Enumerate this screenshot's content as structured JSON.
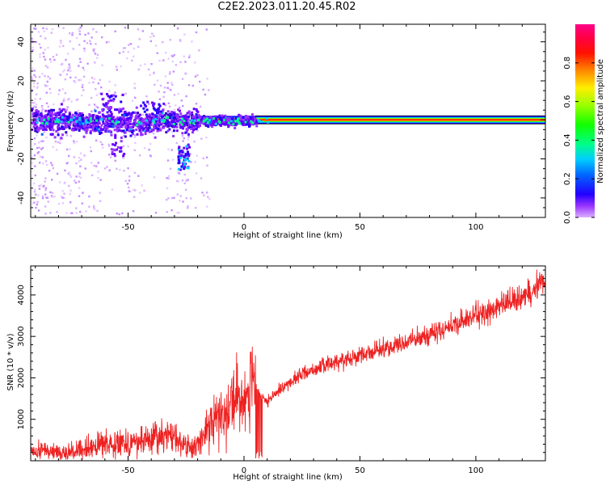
{
  "figure": {
    "title": "C2E2.2023.011.20.45.R02"
  },
  "colorbar": {
    "label": "Normalized spectral amplitude",
    "ticks": [
      "0.0",
      "0.2",
      "0.4",
      "0.6",
      "0.8"
    ],
    "tick_values": [
      0.0,
      0.2,
      0.4,
      0.6,
      0.8
    ],
    "range": [
      0,
      1
    ],
    "colormap": "gist_rainbow (purple-blue-cyan-green-yellow-red-magenta)"
  },
  "chart_data": [
    {
      "type": "heatmap",
      "xlabel": "Height of straight line (km)",
      "ylabel": "Frequency (Hz)",
      "xlim": [
        -92,
        130
      ],
      "ylim": [
        -50,
        49
      ],
      "xticks": [
        -50,
        0,
        50,
        100
      ],
      "xtick_labels": [
        "-50",
        "0",
        "50",
        "100"
      ],
      "yticks": [
        -40,
        -20,
        0,
        20,
        40
      ],
      "ytick_labels": [
        "-40",
        "-20",
        "0",
        "20",
        "40"
      ],
      "grid": false,
      "features": {
        "carrier_frequency_hz": 0,
        "strong_band_x_range": [
          -20,
          130
        ],
        "scattered_energy_x_range": [
          -92,
          -20
        ],
        "off_axis_blob": {
          "x": [
            -29,
            -24
          ],
          "y": [
            -25,
            -12
          ]
        },
        "upper_blob": {
          "x": [
            -62,
            -52
          ],
          "y": [
            5,
            14
          ]
        }
      }
    },
    {
      "type": "line",
      "xlabel": "Height of straight line (km)",
      "ylabel": "SNR (10 * v/v)",
      "xlim": [
        -92,
        130
      ],
      "ylim": [
        0,
        4700
      ],
      "xticks": [
        -50,
        0,
        50,
        100
      ],
      "xtick_labels": [
        "-50",
        "0",
        "50",
        "100"
      ],
      "yticks": [
        1000,
        2000,
        3000,
        4000
      ],
      "ytick_labels": [
        "1000",
        "2000",
        "3000",
        "4000"
      ],
      "grid": false,
      "series": [
        {
          "color": "#ee2222",
          "x": [
            -92,
            -85,
            -80,
            -75,
            -70,
            -65,
            -60,
            -55,
            -50,
            -45,
            -40,
            -35,
            -30,
            -27,
            -25,
            -22,
            -20,
            -15,
            -10,
            -5,
            0,
            5,
            8,
            10,
            15,
            20,
            25,
            30,
            40,
            50,
            60,
            70,
            80,
            90,
            100,
            110,
            120,
            125,
            130
          ],
          "values": [
            200,
            250,
            220,
            200,
            250,
            330,
            400,
            470,
            450,
            450,
            550,
            600,
            600,
            450,
            350,
            300,
            400,
            800,
            1200,
            1400,
            1600,
            1800,
            1500,
            1400,
            1700,
            1900,
            2100,
            2200,
            2400,
            2550,
            2700,
            2850,
            3050,
            3250,
            3500,
            3700,
            3950,
            4150,
            4400
          ]
        }
      ]
    }
  ]
}
